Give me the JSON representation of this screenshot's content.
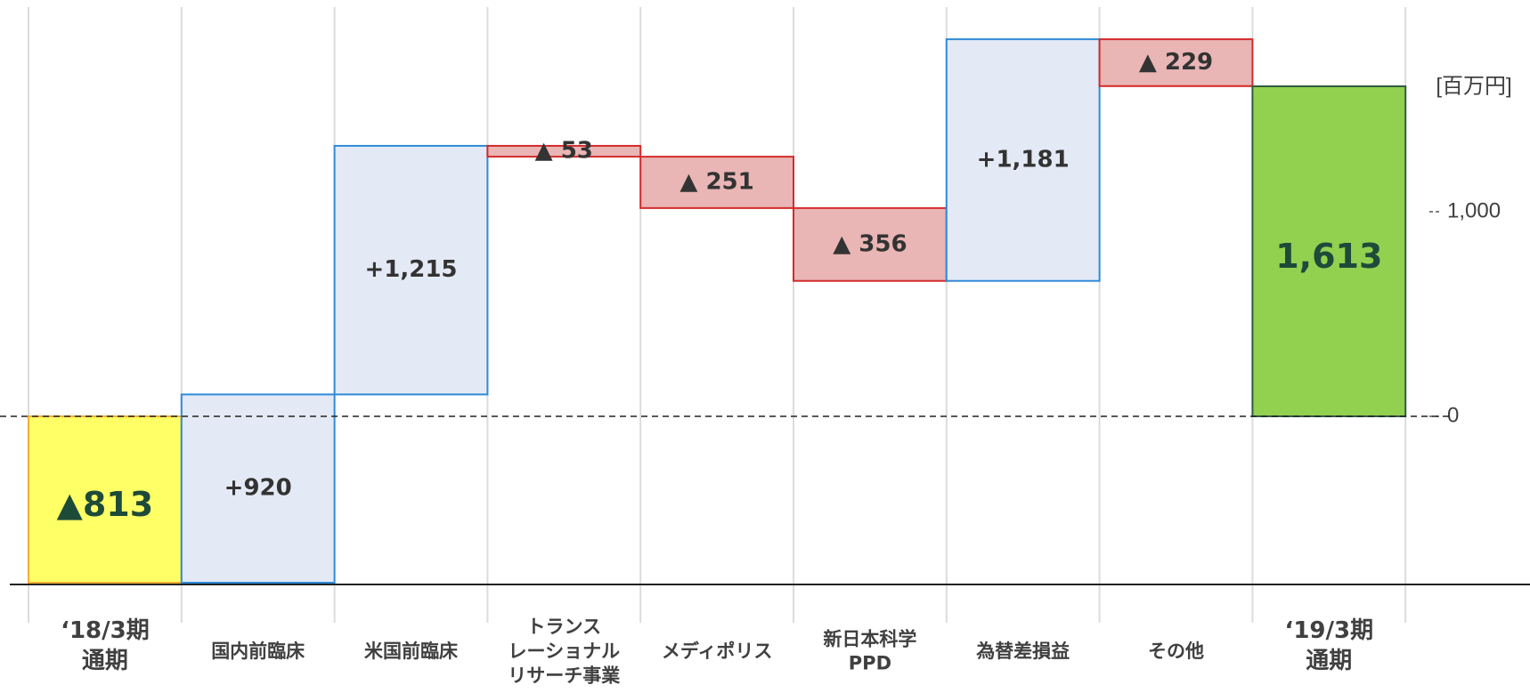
{
  "chart_data": {
    "type": "waterfall",
    "categories": [
      "‘18/3期\n通期",
      "国内前臨床",
      "米国前臨床",
      "トランス\nレーショナル\nリサーチ事業",
      "メディポリス",
      "新日本科学\nPPD",
      "為替差損益",
      "その他",
      "‘19/3期\n通期"
    ],
    "values": [
      -813,
      920,
      1215,
      -53,
      -251,
      -356,
      1181,
      -229,
      1613
    ],
    "value_labels": [
      "▲813",
      "+920",
      "+1,215",
      "▲ 53",
      "▲ 251",
      "▲ 356",
      "+1,181",
      "▲ 229",
      "1,613"
    ],
    "colors": {
      "start": "#ffff66",
      "increase": "#e4eaf5",
      "decrease": "#e9b5b5",
      "end": "#92d050"
    },
    "border_colors": {
      "start": "#f0b030",
      "increase": "#2f8bd9",
      "decrease": "#d42a2a",
      "end": "#2e5e3e"
    },
    "y_label": "[百万円]",
    "ylim": [
      -813,
      2000
    ],
    "yticks": [
      0,
      {
        "value": 1000,
        "label": "1,000"
      }
    ],
    "grid": true
  }
}
